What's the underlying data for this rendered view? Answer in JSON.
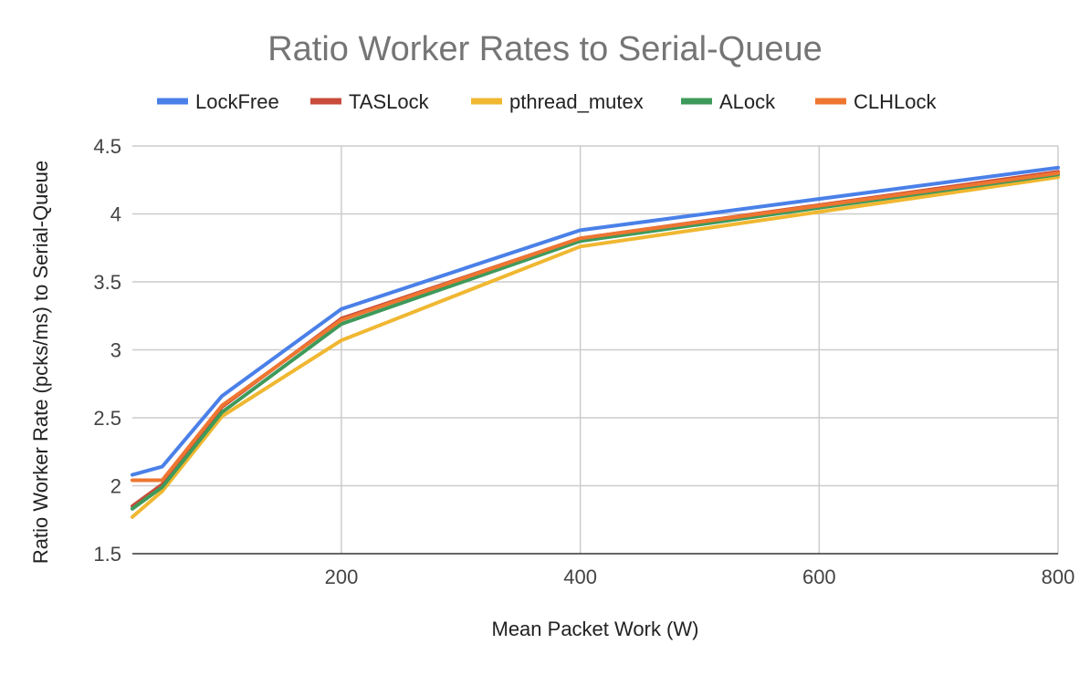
{
  "chart_data": {
    "type": "line",
    "title": "Ratio Worker Rates to Serial-Queue",
    "xlabel": "Mean Packet Work (W)",
    "ylabel": "Ratio Worker Rate (pcks/ms) to Serial-Queue",
    "xlim": [
      25,
      800
    ],
    "ylim": [
      1.5,
      4.5
    ],
    "x_ticks": [
      200,
      400,
      600,
      800
    ],
    "y_ticks": [
      1.5,
      2,
      2.5,
      3,
      3.5,
      4,
      4.5
    ],
    "x_tick_labels": [
      "200",
      "400",
      "600",
      "800"
    ],
    "y_tick_labels": [
      "1.5",
      "2",
      "2.5",
      "3",
      "3.5",
      "4",
      "4.5"
    ],
    "grid": true,
    "legend_position": "top",
    "x": [
      25,
      50,
      100,
      200,
      400,
      800
    ],
    "series": [
      {
        "name": "LockFree",
        "color": "#4a80e8",
        "values": [
          2.08,
          2.14,
          2.66,
          3.3,
          3.88,
          4.34
        ]
      },
      {
        "name": "TASLock",
        "color": "#c84c3c",
        "values": [
          1.85,
          2.01,
          2.58,
          3.23,
          3.82,
          4.31
        ]
      },
      {
        "name": "pthread_mutex",
        "color": "#f0b731",
        "values": [
          1.77,
          1.96,
          2.51,
          3.07,
          3.76,
          4.27
        ]
      },
      {
        "name": "ALock",
        "color": "#3e9a5a",
        "values": [
          1.83,
          1.99,
          2.54,
          3.19,
          3.8,
          4.29
        ]
      },
      {
        "name": "CLHLock",
        "color": "#ee7631",
        "values": [
          2.04,
          2.04,
          2.59,
          3.22,
          3.82,
          4.3
        ]
      }
    ]
  }
}
